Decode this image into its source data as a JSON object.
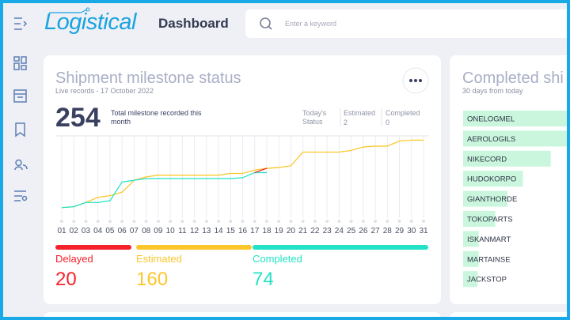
{
  "header": {
    "logo": "Logistical",
    "title": "Dashboard",
    "search_placeholder": "Enter a keyword"
  },
  "milestone_card": {
    "title": "Shipment milestone status",
    "subtitle": "Live records - 17 October 2022",
    "total": 254,
    "total_label": "Total milestone recorded this month",
    "today_status": {
      "label": "Today's Status",
      "items": [
        {
          "name": "Estimated",
          "value": 2
        },
        {
          "name": "Completed",
          "value": 0
        }
      ]
    },
    "chart_data": {
      "type": "line",
      "categories": [
        "01",
        "02",
        "03",
        "04",
        "05",
        "06",
        "07",
        "08",
        "09",
        "10",
        "11",
        "12",
        "13",
        "14",
        "15",
        "16",
        "17",
        "18",
        "19",
        "20",
        "21",
        "22",
        "23",
        "24",
        "25",
        "26",
        "27",
        "28",
        "29",
        "30",
        "31"
      ],
      "ylim": [
        0,
        100
      ],
      "series": [
        {
          "name": "Delayed",
          "color": "#f5222d",
          "total": 20,
          "values": [
            null,
            null,
            null,
            null,
            null,
            null,
            null,
            null,
            null,
            null,
            null,
            null,
            null,
            null,
            null,
            null,
            57,
            62,
            null,
            null,
            null,
            null,
            null,
            null,
            null,
            null,
            null,
            null,
            null,
            null,
            null
          ]
        },
        {
          "name": "Estimated",
          "color": "#fcc72c",
          "total": 160,
          "values": [
            16,
            17,
            22,
            28,
            30,
            34,
            48,
            52,
            54,
            54,
            54,
            54,
            54,
            54,
            56,
            56,
            60,
            62,
            63,
            65,
            81,
            81,
            81,
            81,
            83,
            87,
            88,
            88,
            94,
            95,
            95
          ]
        },
        {
          "name": "Completed",
          "color": "#22e3c6",
          "total": 74,
          "values": [
            16,
            17,
            22,
            22,
            24,
            46,
            48,
            50,
            50,
            50,
            50,
            50,
            50,
            50,
            50,
            51,
            57,
            57,
            null,
            null,
            null,
            null,
            null,
            null,
            null,
            null,
            null,
            null,
            null,
            null,
            null
          ]
        }
      ]
    }
  },
  "completed_card": {
    "title": "Completed shi",
    "subtitle": "30 days from today",
    "chart_data": {
      "type": "bar",
      "orientation": "horizontal",
      "color": "#c9f6dc",
      "categories": [
        "ONELOGMEL",
        "AEROLOGILS",
        "NIKECORD",
        "HUDOKORPO",
        "GIANTHORDE",
        "TOKOPARTS",
        "ISKANMART",
        "MARTAINSE",
        "JACKSTOP"
      ],
      "values": [
        100,
        100,
        79,
        54,
        40,
        29,
        14,
        14,
        13
      ],
      "xlim": [
        0,
        100
      ]
    }
  }
}
